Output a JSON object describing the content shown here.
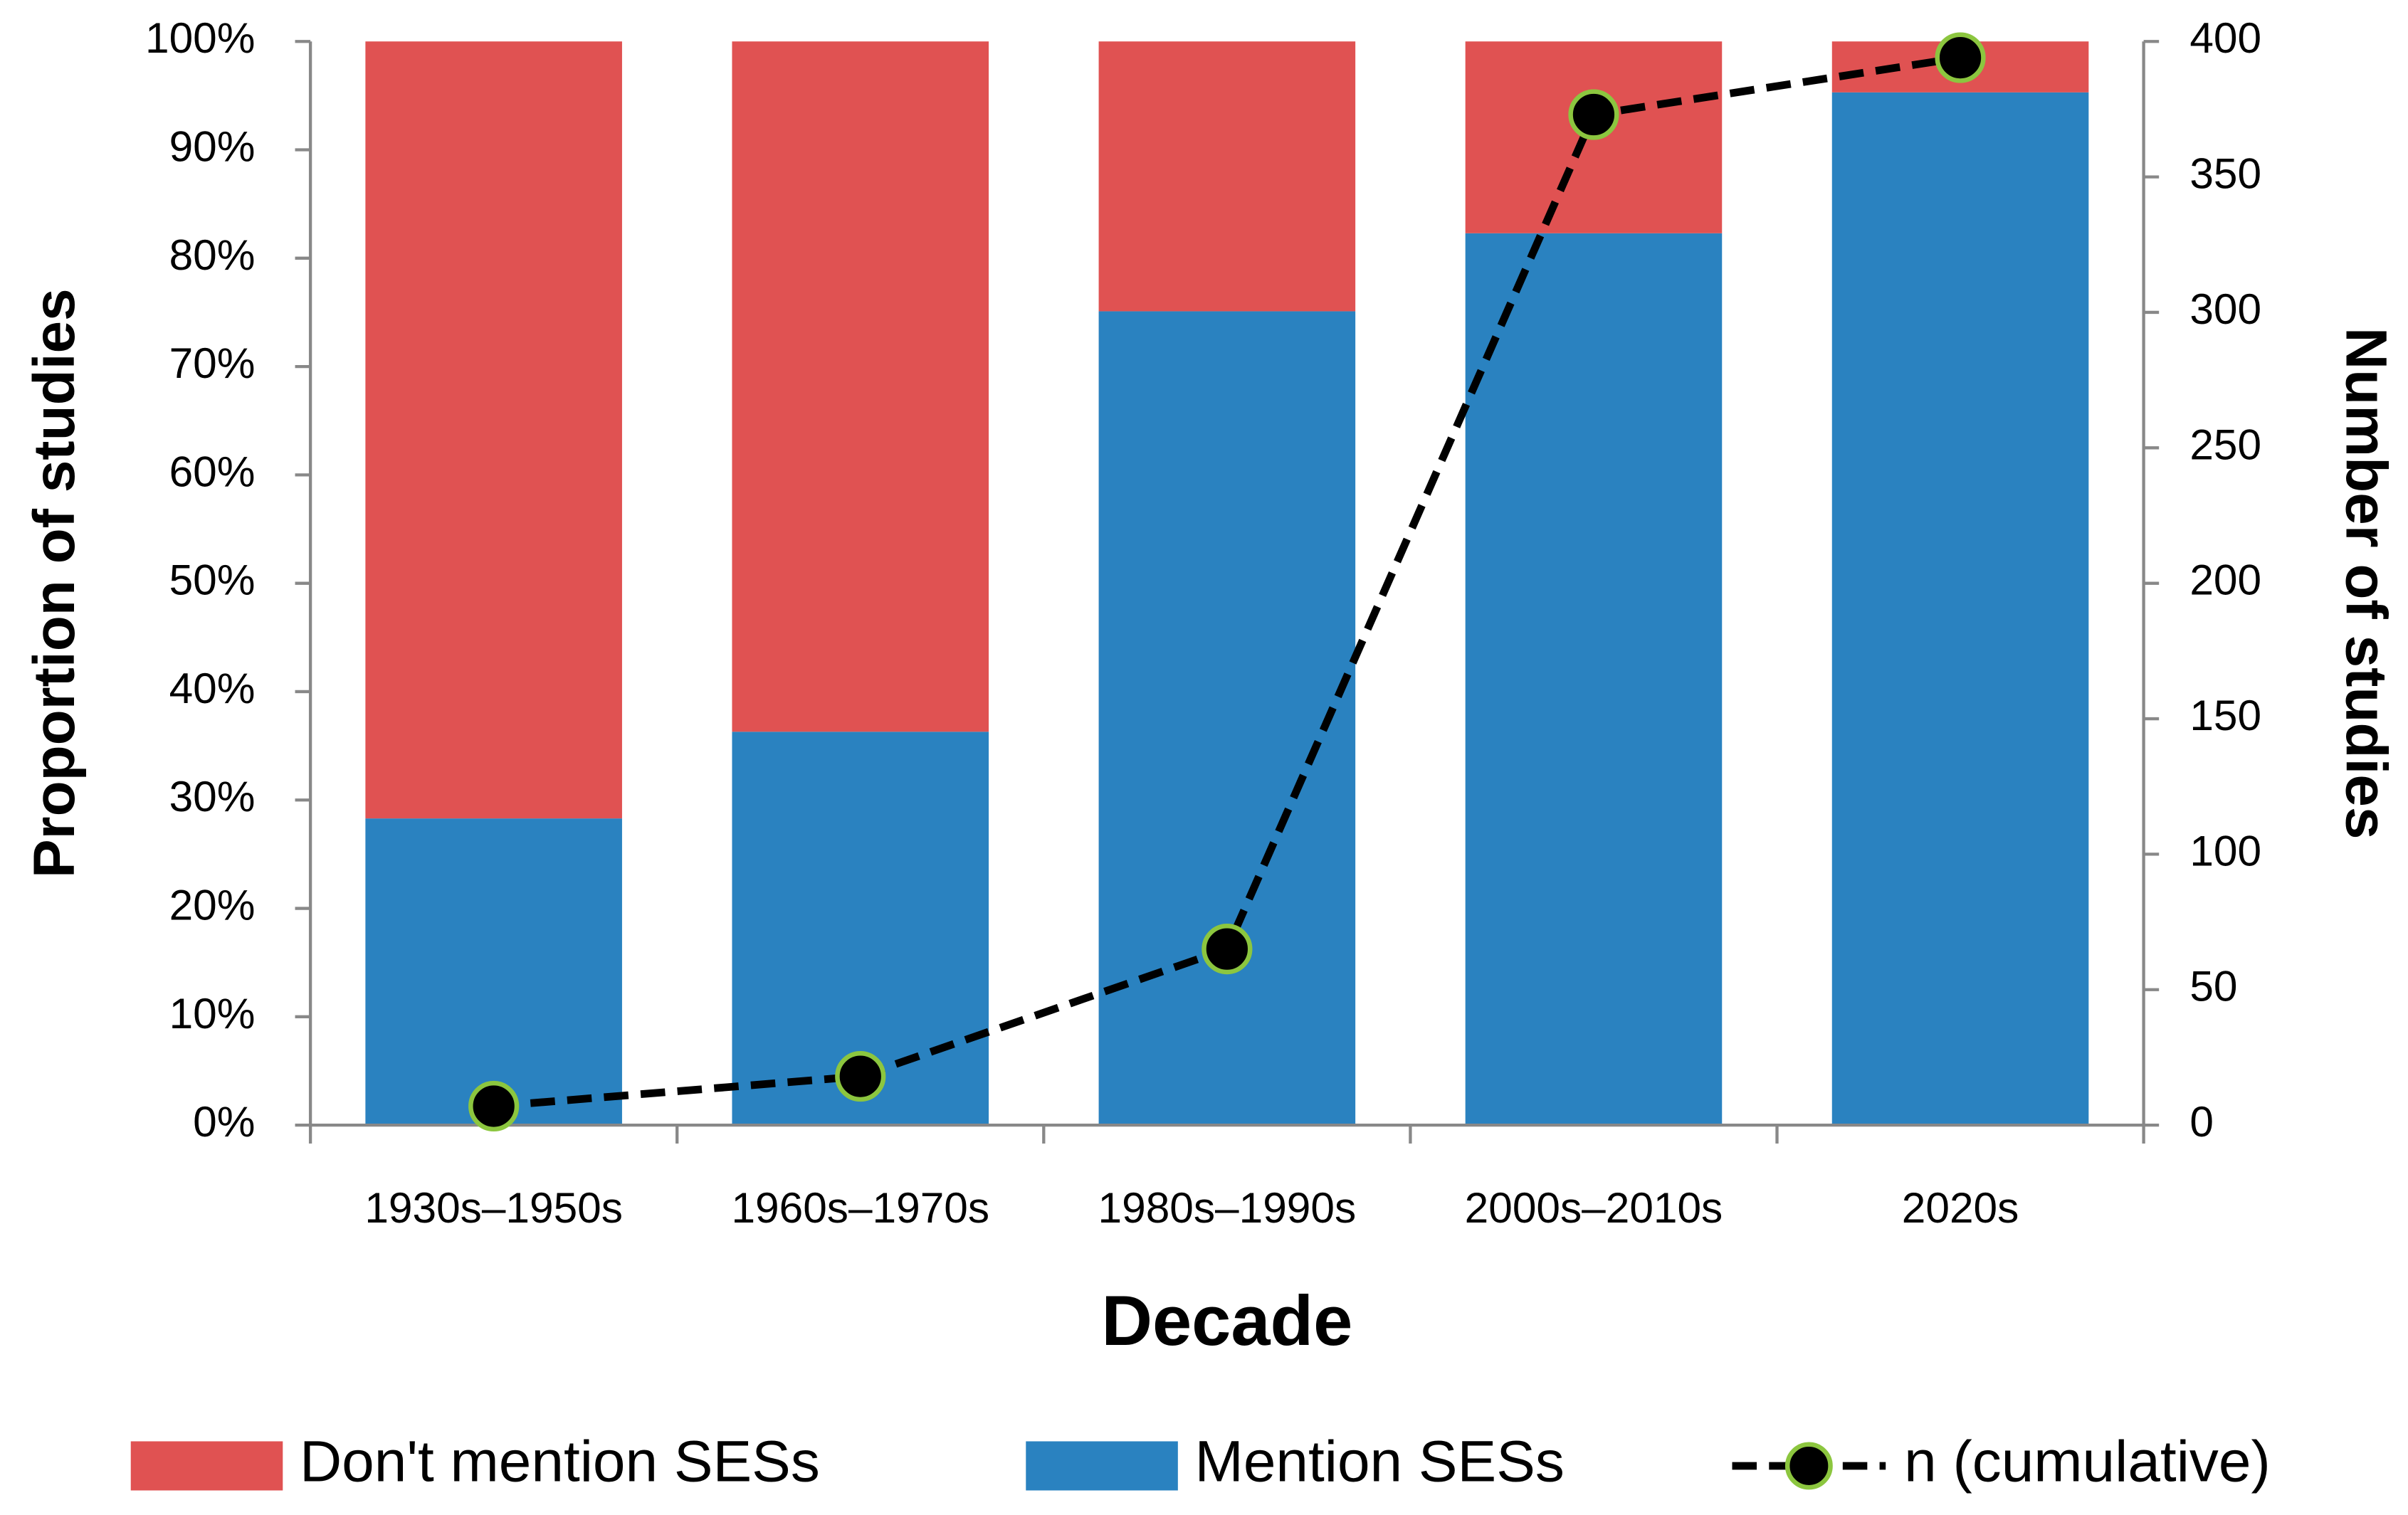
{
  "chart_data": {
    "type": "bar",
    "stacked": true,
    "x_label": "Decade",
    "y_label": "Proportion of studies",
    "y2_label": "Number of studies",
    "categories": [
      "1930s–1950s",
      "1960s–1970s",
      "1980s–1990s",
      "2000s–2010s",
      "2020s"
    ],
    "series": [
      {
        "name": "Don't mention SESs",
        "color": "#e05252",
        "type": "bar",
        "values": [
          71.7,
          63.7,
          24.9,
          17.7,
          4.7
        ]
      },
      {
        "name": "Mention SESs",
        "color": "#2a82c0",
        "type": "bar",
        "values": [
          28.3,
          36.3,
          75.1,
          82.3,
          95.3
        ]
      },
      {
        "name": "n (cumulative)",
        "color": "#000000",
        "marker_edge_color": "#8cc63f",
        "type": "line",
        "linestyle": "dashed",
        "axis": "y2",
        "values": [
          7,
          18,
          65,
          373,
          394
        ]
      }
    ],
    "ylim": [
      0,
      100
    ],
    "yticks": [
      {
        "value": 0,
        "label": "0%"
      },
      {
        "value": 10,
        "label": "10%"
      },
      {
        "value": 20,
        "label": "20%"
      },
      {
        "value": 30,
        "label": "30%"
      },
      {
        "value": 40,
        "label": "40%"
      },
      {
        "value": 50,
        "label": "50%"
      },
      {
        "value": 60,
        "label": "60%"
      },
      {
        "value": 70,
        "label": "70%"
      },
      {
        "value": 80,
        "label": "80%"
      },
      {
        "value": 90,
        "label": "90%"
      },
      {
        "value": 100,
        "label": "100%"
      }
    ],
    "y2lim": [
      0,
      400
    ],
    "y2ticks": [
      0,
      50,
      100,
      150,
      200,
      250,
      300,
      350,
      400
    ],
    "grid": false,
    "legend": "bottom"
  }
}
